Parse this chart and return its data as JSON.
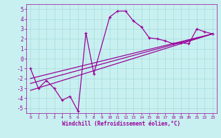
{
  "xlabel": "Windchill (Refroidissement éolien,°C)",
  "xlim": [
    -0.5,
    23.5
  ],
  "ylim": [
    -5.5,
    5.5
  ],
  "xticks": [
    0,
    1,
    2,
    3,
    4,
    5,
    6,
    7,
    8,
    9,
    10,
    11,
    12,
    13,
    14,
    15,
    16,
    17,
    18,
    19,
    20,
    21,
    22,
    23
  ],
  "yticks": [
    -5,
    -4,
    -3,
    -2,
    -1,
    0,
    1,
    2,
    3,
    4,
    5
  ],
  "bg_color": "#c8f0f0",
  "line_color": "#990099",
  "grid_color": "#a8dada",
  "series1_x": [
    0,
    1,
    2,
    3,
    4,
    5,
    6,
    7,
    8,
    10,
    11,
    12,
    13,
    14,
    15,
    16,
    17,
    18,
    19,
    20,
    21,
    22,
    23
  ],
  "series1_y": [
    -1,
    -3,
    -2.2,
    -3,
    -4.2,
    -3.8,
    -5.3,
    2.6,
    -1.5,
    4.2,
    4.8,
    4.8,
    3.8,
    3.2,
    2.1,
    2.0,
    1.8,
    1.5,
    1.6,
    1.5,
    3.0,
    2.7,
    2.5
  ],
  "series2_x": [
    0,
    23
  ],
  "series2_y": [
    -3.2,
    2.5
  ],
  "series3_x": [
    0,
    23
  ],
  "series3_y": [
    -2.5,
    2.5
  ],
  "series4_x": [
    0,
    23
  ],
  "series4_y": [
    -2.0,
    2.5
  ]
}
